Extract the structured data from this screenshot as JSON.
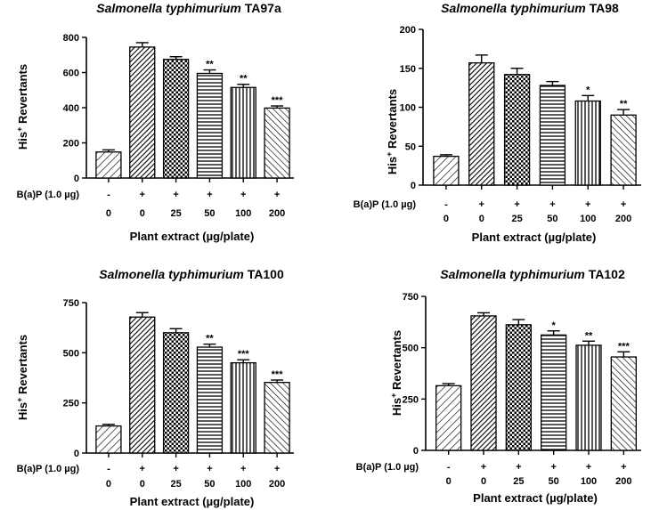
{
  "chart_data": [
    {
      "type": "bar",
      "title_italic": "Salmonella typhimurium",
      "title_strain": "TA97a",
      "ylabel": "His⁺ Revertants",
      "xlabel": "Plant extract (µg/plate)",
      "row_label": "B(a)P  (1.0 µg)",
      "bap_row": [
        "-",
        "+",
        "+",
        "+",
        "+",
        "+"
      ],
      "categories": [
        "0",
        "0",
        "25",
        "50",
        "100",
        "200"
      ],
      "values": [
        148,
        745,
        675,
        595,
        515,
        398
      ],
      "errors": [
        12,
        25,
        15,
        20,
        18,
        12
      ],
      "significance": [
        "",
        "",
        "",
        "**",
        "**",
        "***"
      ],
      "ylim": [
        0,
        800
      ],
      "yticks": [
        0,
        200,
        400,
        600,
        800
      ],
      "ytick_labels": [
        "0",
        "200",
        "400",
        "600",
        "800"
      ]
    },
    {
      "type": "bar",
      "title_italic": "Salmonella typhimurium",
      "title_strain": "TA98",
      "ylabel": "His⁺ Revertants",
      "xlabel": "Plant extract (µg/plate)",
      "row_label": "B(a)P  (1.0 µg)",
      "bap_row": [
        "-",
        "+",
        "+",
        "+",
        "+",
        "+"
      ],
      "categories": [
        "0",
        "0",
        "25",
        "50",
        "100",
        "200"
      ],
      "values": [
        37,
        157,
        142,
        128,
        108,
        90
      ],
      "errors": [
        2,
        10,
        8,
        5,
        7,
        7
      ],
      "significance": [
        "",
        "",
        "",
        "",
        "*",
        "**"
      ],
      "ylim": [
        0,
        200
      ],
      "yticks": [
        0,
        50,
        100,
        150,
        200
      ],
      "ytick_labels": [
        "0",
        "50",
        "100",
        "150",
        "200"
      ]
    },
    {
      "type": "bar",
      "title_italic": "Salmonella typhimurium",
      "title_strain": "TA100",
      "ylabel": "His⁺ Revertants",
      "xlabel": "Plant extract (µg/plate)",
      "row_label": "B(a)P  (1.0 µg)",
      "bap_row": [
        "-",
        "+",
        "+",
        "+",
        "+",
        "+"
      ],
      "categories": [
        "0",
        "0",
        "25",
        "50",
        "100",
        "200"
      ],
      "values": [
        135,
        678,
        600,
        528,
        450,
        352
      ],
      "errors": [
        8,
        22,
        20,
        15,
        15,
        12
      ],
      "significance": [
        "",
        "",
        "",
        "**",
        "***",
        "***"
      ],
      "ylim": [
        0,
        750
      ],
      "yticks": [
        0,
        250,
        500,
        750
      ],
      "ytick_labels": [
        "0",
        "250",
        "500",
        "750"
      ]
    },
    {
      "type": "bar",
      "title_italic": "Salmonella typhimurium",
      "title_strain": "TA102",
      "ylabel": "His⁺ Revertants",
      "xlabel": "Plant extract (µg/plate)",
      "row_label": "B(a)P  (1.0 µg)",
      "bap_row": [
        "-",
        "+",
        "+",
        "+",
        "+",
        "+"
      ],
      "categories": [
        "0",
        "0",
        "25",
        "50",
        "100",
        "200"
      ],
      "values": [
        315,
        655,
        612,
        562,
        512,
        455
      ],
      "errors": [
        10,
        15,
        25,
        20,
        20,
        25
      ],
      "significance": [
        "",
        "",
        "",
        "*",
        "**",
        "***"
      ],
      "ylim": [
        0,
        750
      ],
      "yticks": [
        0,
        250,
        500,
        750
      ],
      "ytick_labels": [
        "0",
        "250",
        "500",
        "750"
      ]
    }
  ]
}
